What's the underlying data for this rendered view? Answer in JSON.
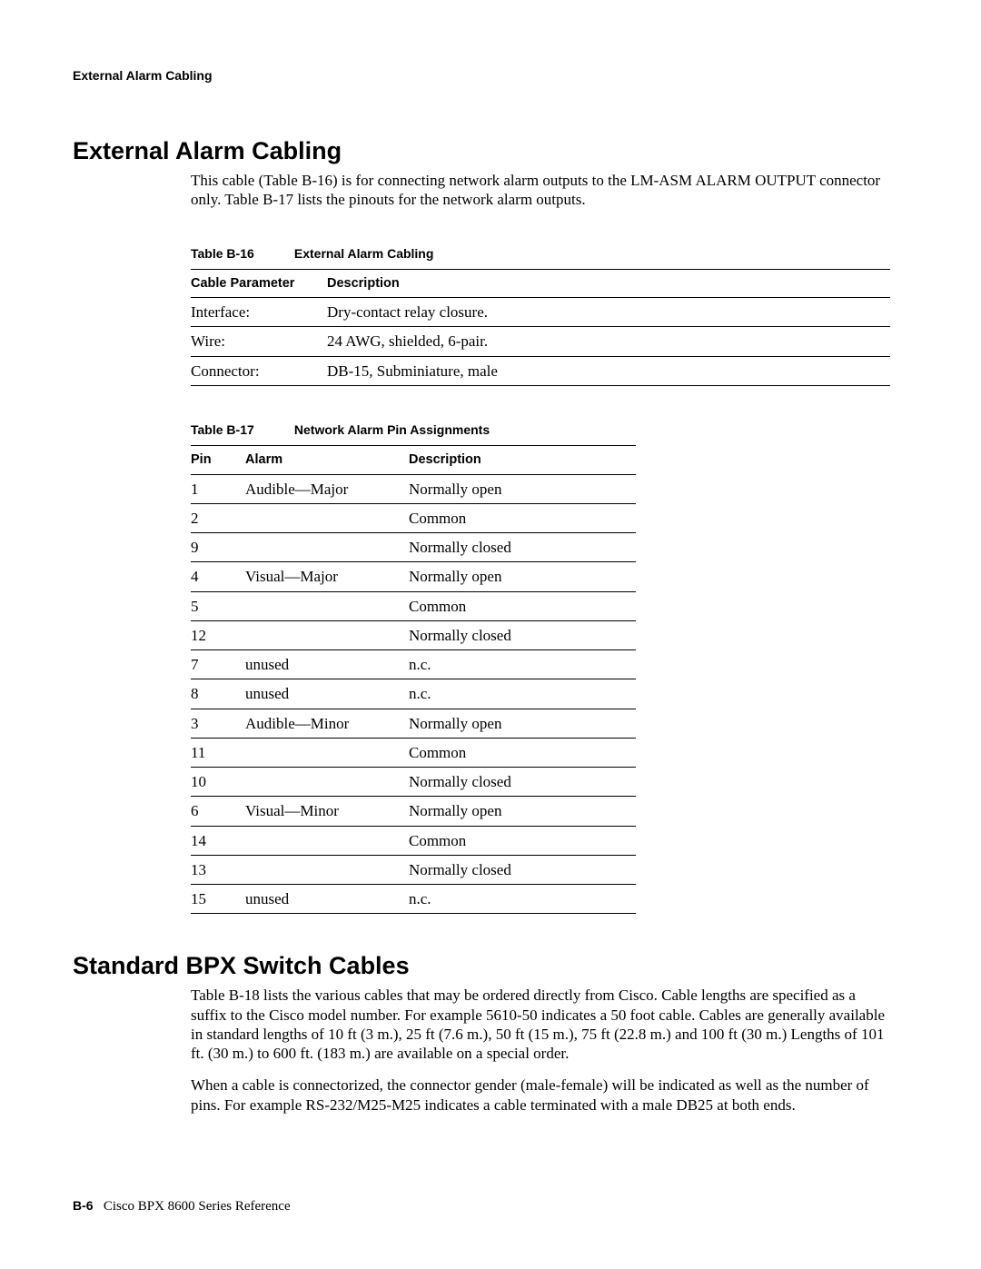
{
  "running_head": "External Alarm Cabling",
  "section1": {
    "title": "External Alarm Cabling",
    "para": "This cable (Table B-16) is for connecting network alarm outputs to the LM-ASM ALARM OUTPUT connector only. Table B-17 lists the pinouts for the network alarm outputs."
  },
  "table16": {
    "caption_num": "Table B-16",
    "caption_title": "External Alarm Cabling",
    "headers": [
      "Cable Parameter",
      "Description"
    ],
    "rows": [
      [
        "Interface:",
        "Dry-contact relay closure."
      ],
      [
        "Wire:",
        "24 AWG, shielded, 6-pair."
      ],
      [
        "Connector:",
        "DB-15, Subminiature, male"
      ]
    ]
  },
  "table17": {
    "caption_num": "Table B-17",
    "caption_title": "Network Alarm Pin Assignments",
    "headers": [
      "Pin",
      "Alarm",
      "Description"
    ],
    "rows": [
      [
        "1",
        "Audible—Major",
        "Normally open"
      ],
      [
        "2",
        "",
        "Common"
      ],
      [
        "9",
        "",
        "Normally closed"
      ],
      [
        "4",
        "Visual—Major",
        "Normally open"
      ],
      [
        "5",
        "",
        "Common"
      ],
      [
        "12",
        "",
        "Normally closed"
      ],
      [
        "7",
        "unused",
        "n.c."
      ],
      [
        "8",
        "unused",
        "n.c."
      ],
      [
        "3",
        "Audible—Minor",
        "Normally open"
      ],
      [
        "11",
        "",
        "Common"
      ],
      [
        "10",
        "",
        "Normally closed"
      ],
      [
        "6",
        "Visual—Minor",
        "Normally open"
      ],
      [
        "14",
        "",
        "Common"
      ],
      [
        "13",
        "",
        "Normally closed"
      ],
      [
        "15",
        "unused",
        "n.c."
      ]
    ]
  },
  "section2": {
    "title": "Standard BPX Switch Cables",
    "para1": "Table B-18 lists the various cables that may be ordered directly from Cisco. Cable lengths are specified as a suffix to the Cisco model number. For example 5610-50 indicates a 50 foot cable. Cables are generally available in standard lengths of 10 ft (3 m.), 25 ft (7.6 m.), 50 ft (15 m.), 75 ft (22.8 m.) and 100 ft (30 m.) Lengths of 101 ft. (30 m.) to 600 ft. (183 m.) are available on a special order.",
    "para2": "When a cable is connectorized, the connector gender (male-female) will be indicated as well as the number of pins. For example RS-232/M25-M25 indicates a cable terminated with a male DB25 at both ends."
  },
  "footer": {
    "page_num": "B-6",
    "doc_title": "Cisco BPX 8600 Series Reference"
  }
}
